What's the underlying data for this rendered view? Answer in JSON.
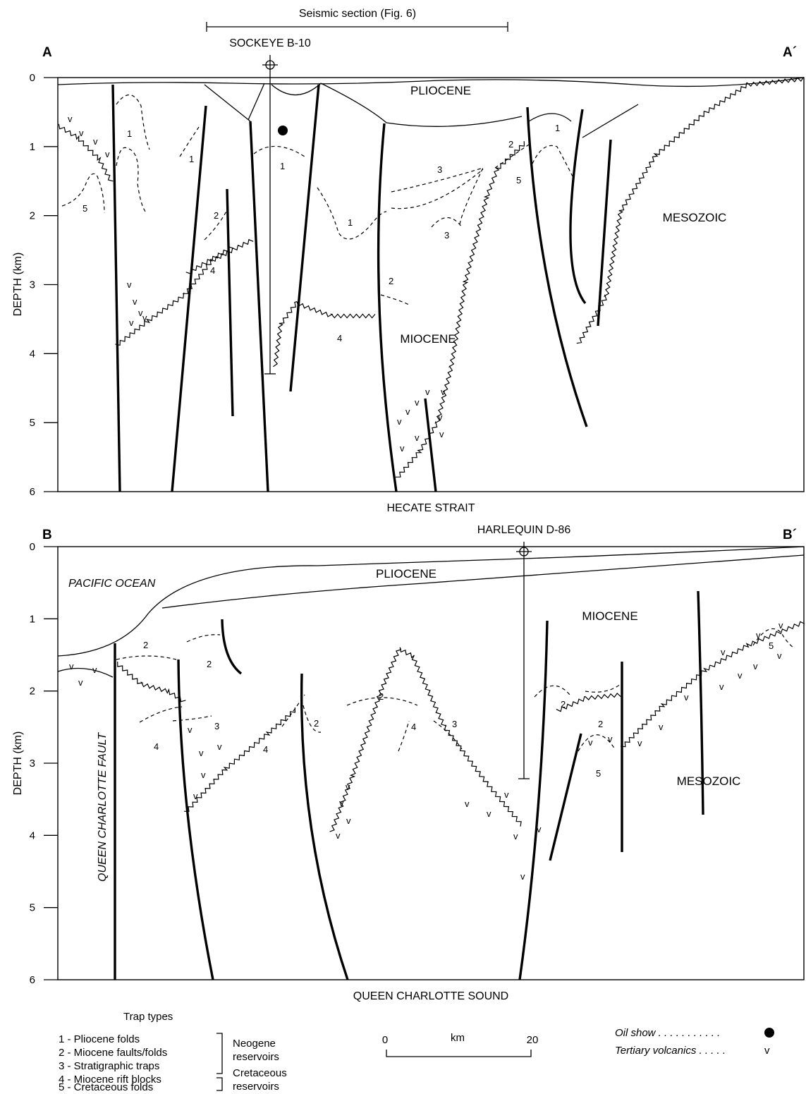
{
  "seismic": {
    "label": "Seismic section (Fig. 6)"
  },
  "section_a": {
    "left_label": "A",
    "right_label": "A´",
    "well": "SOCKEYE B-10",
    "bottom_label": "HECATE STRAIT",
    "units": {
      "pliocene": "PLIOCENE",
      "miocene": "MIOCENE",
      "mesozoic": "MESOZOIC"
    },
    "traps": [
      "1",
      "1",
      "1",
      "1",
      "1",
      "2",
      "2",
      "2",
      "3",
      "3",
      "4",
      "4",
      "5",
      "5"
    ]
  },
  "section_b": {
    "left_label": "B",
    "right_label": "B´",
    "well": "HARLEQUIN D-86",
    "bottom_label": "QUEEN CHARLOTTE SOUND",
    "units": {
      "pacific": "PACIFIC OCEAN",
      "pliocene": "PLIOCENE",
      "miocene": "MIOCENE",
      "mesozoic": "MESOZOIC",
      "fault": "QUEEN CHARLOTTE FAULT"
    },
    "traps": [
      "2",
      "2",
      "2",
      "2",
      "2",
      "2",
      "3",
      "3",
      "4",
      "4",
      "4",
      "5",
      "5"
    ]
  },
  "axis": {
    "title": "DEPTH (km)",
    "ticks": [
      "0",
      "1",
      "2",
      "3",
      "4",
      "5",
      "6"
    ]
  },
  "legend": {
    "title": "Trap types",
    "items": [
      "1 - Pliocene folds",
      "2 - Miocene faults/folds",
      "3 - Stratigraphic traps",
      "4 - Miocene rift blocks",
      "5 - Cretaceous folds"
    ],
    "neogene": [
      "Neogene",
      "reservoirs"
    ],
    "cretaceous": [
      "Cretaceous",
      "reservoirs"
    ],
    "oil_show": "Oil show . . . . . . . . . . .",
    "volcanics": "Tertiary volcanics . . . . .",
    "volcanic_symbol": "v"
  },
  "scale": {
    "start": "0",
    "unit": "km",
    "end": "20"
  }
}
